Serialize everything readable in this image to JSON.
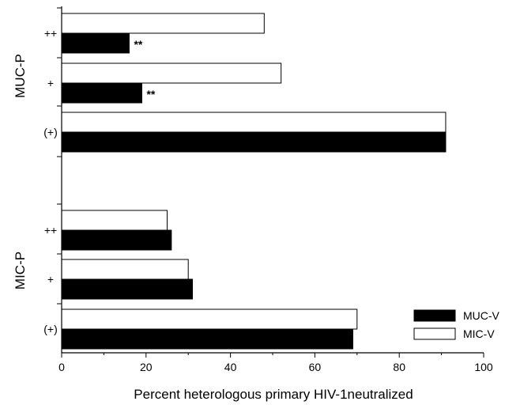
{
  "chart_data": {
    "type": "bar",
    "orientation": "horizontal",
    "xlabel": "Percent heterologous primary HIV-1neutralized",
    "xlim": [
      0,
      100
    ],
    "xticks": [
      0,
      20,
      40,
      60,
      80,
      100
    ],
    "legend_position": "bottom-right",
    "groups": [
      {
        "name": "MUC-P",
        "categories": [
          "++",
          "+",
          "(+)"
        ],
        "series": [
          {
            "name": "MUC-V",
            "values": [
              16,
              19,
              91
            ],
            "annotations": [
              "**",
              "**",
              ""
            ]
          },
          {
            "name": "MIC-V",
            "values": [
              48,
              52,
              91
            ],
            "annotations": [
              "",
              "",
              ""
            ]
          }
        ]
      },
      {
        "name": "MIC-P",
        "categories": [
          "++",
          "+",
          "(+)"
        ],
        "series": [
          {
            "name": "MUC-V",
            "values": [
              26,
              31,
              69
            ],
            "annotations": [
              "",
              "",
              ""
            ]
          },
          {
            "name": "MIC-V",
            "values": [
              25,
              30,
              70
            ],
            "annotations": [
              "",
              "",
              ""
            ]
          }
        ]
      }
    ],
    "series_colors": {
      "MUC-V": "#000000",
      "MIC-V": "#ffffff"
    }
  }
}
